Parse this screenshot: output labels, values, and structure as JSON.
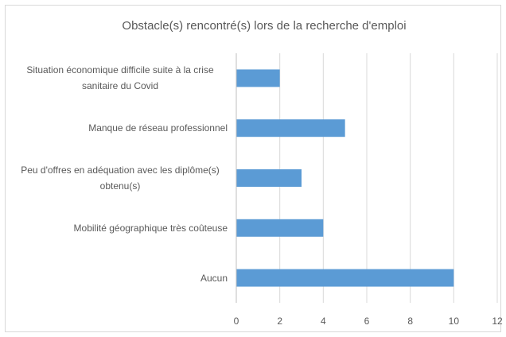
{
  "chart_data": {
    "type": "barh",
    "title": "Obstacle(s) rencontré(s) lors de la recherche d'emploi",
    "categories": [
      "Situation économique difficile suite à la crise sanitaire du Covid",
      "Manque de réseau professionnel",
      "Peu d'offres en adéquation avec les diplôme(s) obtenu(s)",
      "Mobilité géographique très coûteuse",
      "Aucun"
    ],
    "values": [
      2,
      5,
      3,
      4,
      10
    ],
    "color": "#5b9bd5",
    "xlim": [
      0,
      12
    ],
    "xticks": [
      0,
      2,
      4,
      6,
      8,
      10,
      12
    ],
    "grid": true
  }
}
